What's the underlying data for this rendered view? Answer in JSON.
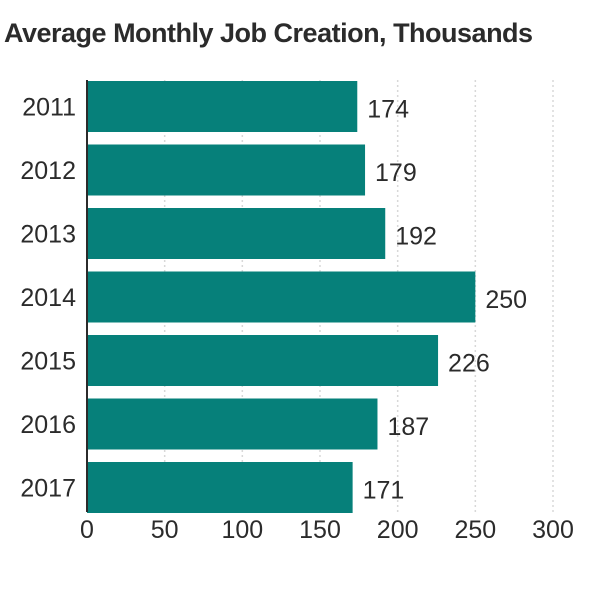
{
  "chart_data": {
    "type": "bar",
    "orientation": "horizontal",
    "title": "Average Monthly Job Creation, Thousands",
    "categories": [
      "2011",
      "2012",
      "2013",
      "2014",
      "2015",
      "2016",
      "2017"
    ],
    "values": [
      174,
      179,
      192,
      250,
      226,
      187,
      171
    ],
    "xlim": [
      0,
      300
    ],
    "xticks": [
      "0",
      "50",
      "100",
      "150",
      "200",
      "250",
      "300"
    ],
    "grid": "vertical dotted",
    "bar_color": "#06807a",
    "text_color": "#2b2b2b",
    "grid_color": "#d8d8d8"
  }
}
